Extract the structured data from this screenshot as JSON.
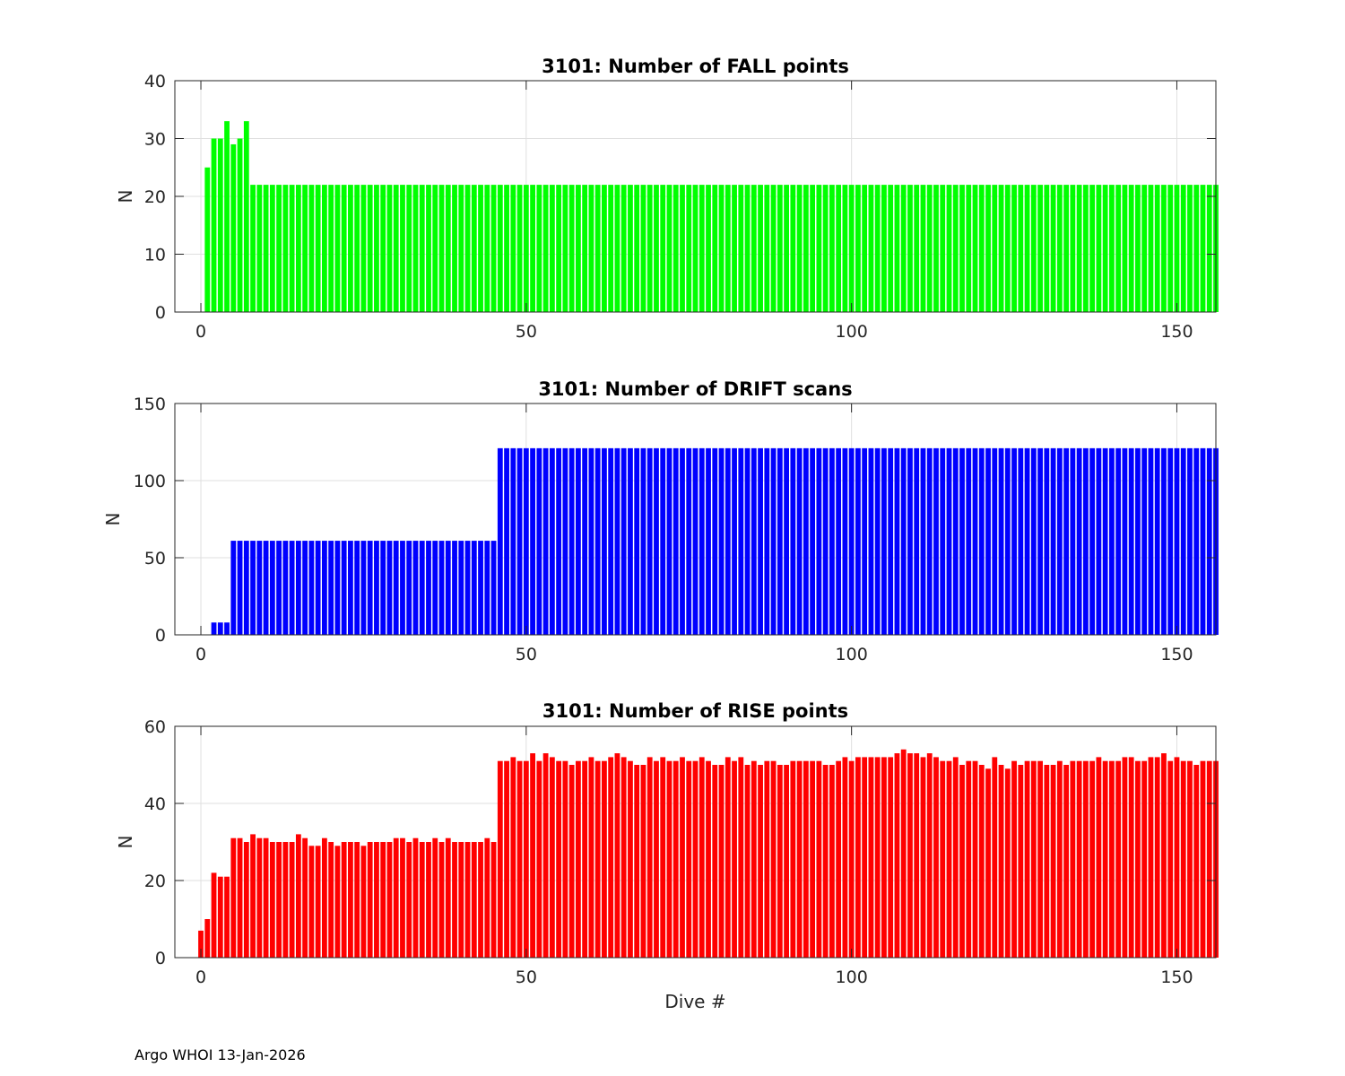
{
  "footer": "Argo WHOI 13-Jan-2026",
  "chart_data": [
    {
      "type": "bar",
      "title": "3101: Number of FALL points",
      "xlabel": "",
      "ylabel": "N",
      "xlim": [
        -4,
        156
      ],
      "ylim": [
        0,
        40
      ],
      "xticks": [
        0,
        50,
        100,
        150
      ],
      "yticks": [
        0,
        10,
        20,
        30,
        40
      ],
      "grid": true,
      "color": "#00ff00",
      "x_start": 0,
      "values": [
        0,
        25,
        30,
        30,
        33,
        29,
        30,
        33,
        22,
        22,
        22,
        22,
        22,
        22,
        22,
        22,
        22,
        22,
        22,
        22,
        22,
        22,
        22,
        22,
        22,
        22,
        22,
        22,
        22,
        22,
        22,
        22,
        22,
        22,
        22,
        22,
        22,
        22,
        22,
        22,
        22,
        22,
        22,
        22,
        22,
        22,
        22,
        22,
        22,
        22,
        22,
        22,
        22,
        22,
        22,
        22,
        22,
        22,
        22,
        22,
        22,
        22,
        22,
        22,
        22,
        22,
        22,
        22,
        22,
        22,
        22,
        22,
        22,
        22,
        22,
        22,
        22,
        22,
        22,
        22,
        22,
        22,
        22,
        22,
        22,
        22,
        22,
        22,
        22,
        22,
        22,
        22,
        22,
        22,
        22,
        22,
        22,
        22,
        22,
        22,
        22,
        22,
        22,
        22,
        22,
        22,
        22,
        22,
        22,
        22,
        22,
        22,
        22,
        22,
        22,
        22,
        22,
        22,
        22,
        22,
        22,
        22,
        22,
        22,
        22,
        22,
        22,
        22,
        22,
        22,
        22,
        22,
        22,
        22,
        22,
        22,
        22,
        22,
        22,
        22,
        22,
        22,
        22,
        22,
        22,
        22,
        22,
        22,
        22,
        22,
        22,
        22,
        22,
        22,
        22,
        22,
        22
      ]
    },
    {
      "type": "bar",
      "title": "3101: Number of DRIFT scans",
      "xlabel": "",
      "ylabel": "N",
      "xlim": [
        -4,
        156
      ],
      "ylim": [
        0,
        150
      ],
      "xticks": [
        0,
        50,
        100,
        150
      ],
      "yticks": [
        0,
        50,
        100,
        150
      ],
      "grid": true,
      "color": "#0000ff",
      "x_start": 0,
      "values": [
        0,
        0,
        8,
        8,
        8,
        61,
        61,
        61,
        61,
        61,
        61,
        61,
        61,
        61,
        61,
        61,
        61,
        61,
        61,
        61,
        61,
        61,
        61,
        61,
        61,
        61,
        61,
        61,
        61,
        61,
        61,
        61,
        61,
        61,
        61,
        61,
        61,
        61,
        61,
        61,
        61,
        61,
        61,
        61,
        61,
        61,
        121,
        121,
        121,
        121,
        121,
        121,
        121,
        121,
        121,
        121,
        121,
        121,
        121,
        121,
        121,
        121,
        121,
        121,
        121,
        121,
        121,
        121,
        121,
        121,
        121,
        121,
        121,
        121,
        121,
        121,
        121,
        121,
        121,
        121,
        121,
        121,
        121,
        121,
        121,
        121,
        121,
        121,
        121,
        121,
        121,
        121,
        121,
        121,
        121,
        121,
        121,
        121,
        121,
        121,
        121,
        121,
        121,
        121,
        121,
        121,
        121,
        121,
        121,
        121,
        121,
        121,
        121,
        121,
        121,
        121,
        121,
        121,
        121,
        121,
        121,
        121,
        121,
        121,
        121,
        121,
        121,
        121,
        121,
        121,
        121,
        121,
        121,
        121,
        121,
        121,
        121,
        121,
        121,
        121,
        121,
        121,
        121,
        121,
        121,
        121,
        121,
        121,
        121,
        121,
        121,
        121,
        121,
        121,
        121,
        121,
        121
      ]
    },
    {
      "type": "bar",
      "title": "3101: Number of RISE points",
      "xlabel": "Dive #",
      "ylabel": "N",
      "xlim": [
        -4,
        156
      ],
      "ylim": [
        0,
        60
      ],
      "xticks": [
        0,
        50,
        100,
        150
      ],
      "yticks": [
        0,
        20,
        40,
        60
      ],
      "grid": true,
      "color": "#ff0000",
      "x_start": 0,
      "values": [
        7,
        10,
        22,
        21,
        21,
        31,
        31,
        30,
        32,
        31,
        31,
        30,
        30,
        30,
        30,
        32,
        31,
        29,
        29,
        31,
        30,
        29,
        30,
        30,
        30,
        29,
        30,
        30,
        30,
        30,
        31,
        31,
        30,
        31,
        30,
        30,
        31,
        30,
        31,
        30,
        30,
        30,
        30,
        30,
        31,
        30,
        51,
        51,
        52,
        51,
        51,
        53,
        51,
        53,
        52,
        51,
        51,
        50,
        51,
        51,
        52,
        51,
        51,
        52,
        53,
        52,
        51,
        50,
        50,
        52,
        51,
        52,
        51,
        51,
        52,
        51,
        51,
        52,
        51,
        50,
        50,
        52,
        51,
        52,
        50,
        51,
        50,
        51,
        51,
        50,
        50,
        51,
        51,
        51,
        51,
        51,
        50,
        50,
        51,
        52,
        51,
        52,
        52,
        52,
        52,
        52,
        52,
        53,
        54,
        53,
        53,
        52,
        53,
        52,
        51,
        51,
        52,
        50,
        51,
        51,
        50,
        49,
        52,
        50,
        49,
        51,
        50,
        51,
        51,
        51,
        50,
        50,
        51,
        50,
        51,
        51,
        51,
        51,
        52,
        51,
        51,
        51,
        52,
        52,
        51,
        51,
        52,
        52,
        53,
        51,
        52,
        51,
        51,
        50,
        51,
        51,
        51
      ]
    }
  ]
}
